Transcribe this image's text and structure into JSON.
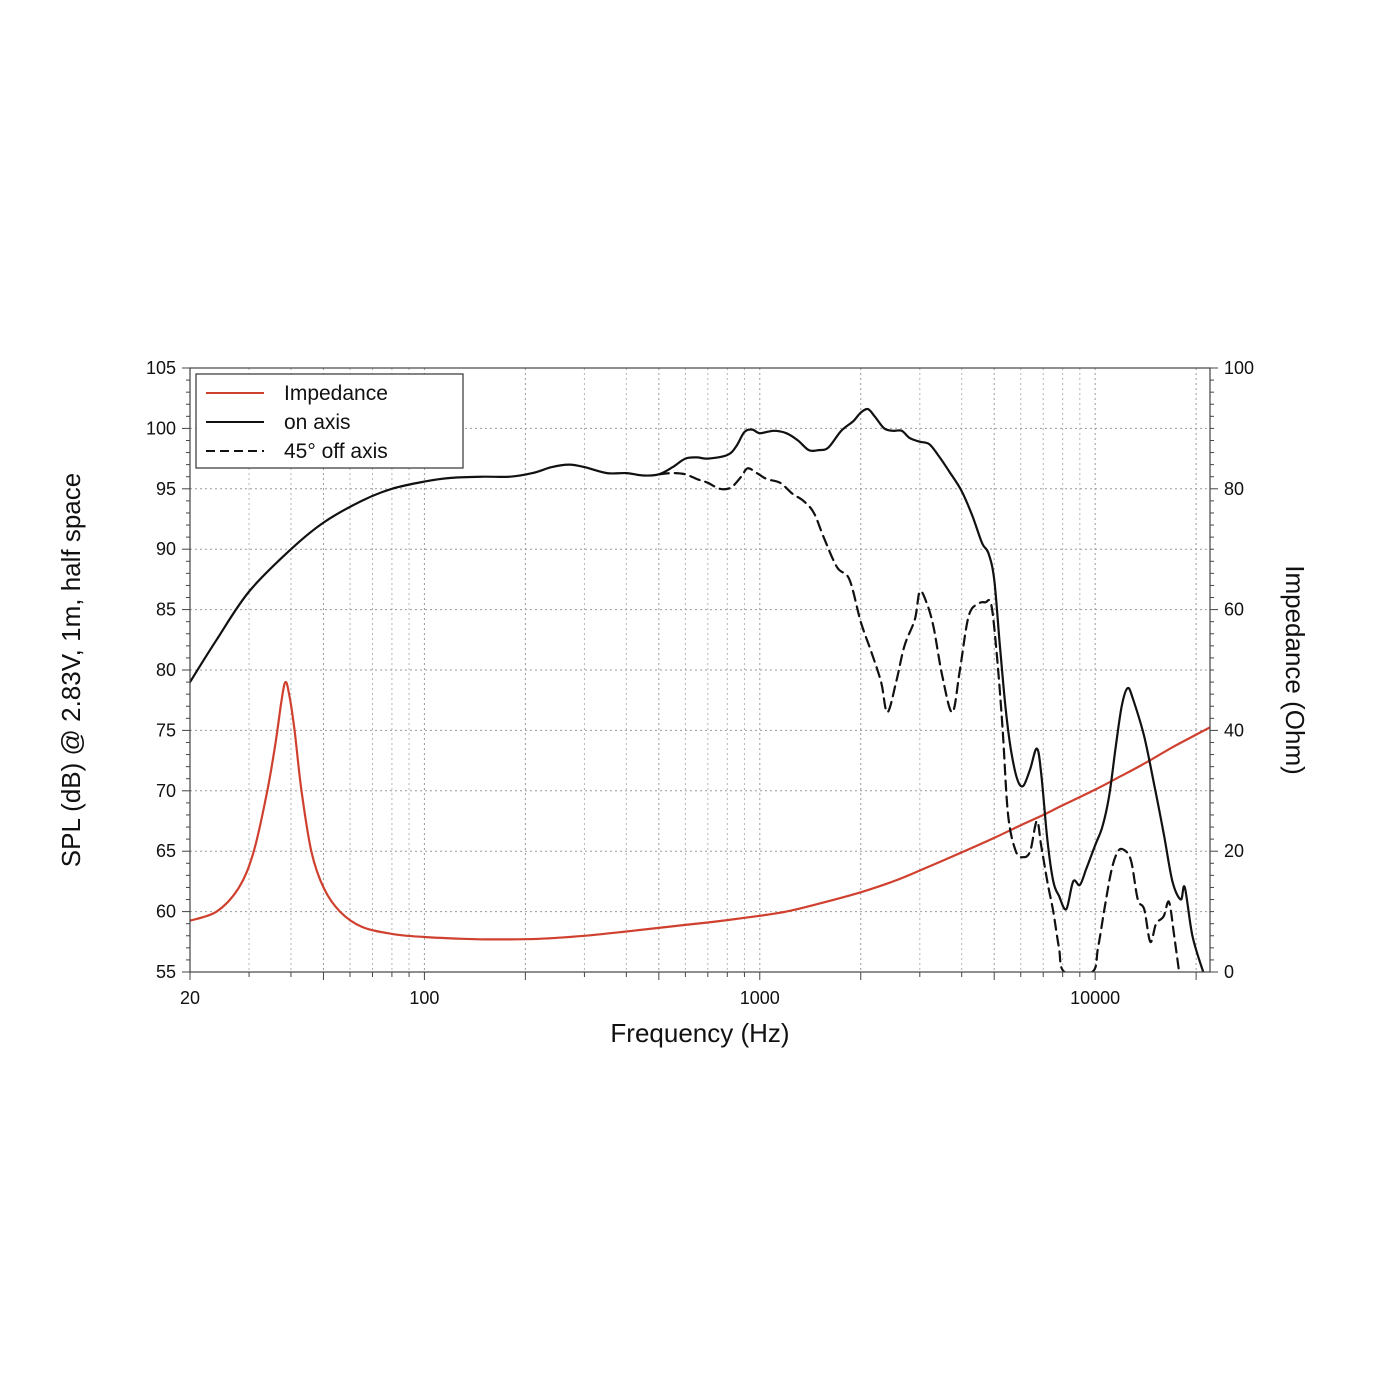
{
  "chart_data": {
    "type": "line",
    "title": "",
    "xlabel": "Frequency (Hz)",
    "ylabel": "SPL (dB) @ 2.83V, 1m, half space",
    "y2label": "Impedance (Ohm)",
    "xscale": "log",
    "xlim": [
      20,
      22000
    ],
    "ylim": [
      55,
      105
    ],
    "y2lim": [
      0,
      100
    ],
    "grid": true,
    "legend_position": "top-left",
    "x_ticks": [
      {
        "value": 20,
        "label": "20"
      },
      {
        "value": 100,
        "label": "100"
      },
      {
        "value": 1000,
        "label": "1000"
      },
      {
        "value": 10000,
        "label": "10000"
      }
    ],
    "y_ticks": [
      {
        "value": 55,
        "label": "55"
      },
      {
        "value": 60,
        "label": "60"
      },
      {
        "value": 65,
        "label": "65"
      },
      {
        "value": 70,
        "label": "70"
      },
      {
        "value": 75,
        "label": "75"
      },
      {
        "value": 80,
        "label": "80"
      },
      {
        "value": 85,
        "label": "85"
      },
      {
        "value": 90,
        "label": "90"
      },
      {
        "value": 95,
        "label": "95"
      },
      {
        "value": 100,
        "label": "100"
      },
      {
        "value": 105,
        "label": "105"
      }
    ],
    "y2_ticks": [
      {
        "value": 0,
        "label": "0"
      },
      {
        "value": 20,
        "label": "20"
      },
      {
        "value": 40,
        "label": "40"
      },
      {
        "value": 60,
        "label": "60"
      },
      {
        "value": 80,
        "label": "80"
      },
      {
        "value": 100,
        "label": "100"
      }
    ],
    "series": [
      {
        "name": "Impedance",
        "axis": "right",
        "color": "#d0402f",
        "dash": "solid",
        "points": [
          [
            20,
            8.5
          ],
          [
            24,
            10
          ],
          [
            28,
            14
          ],
          [
            31,
            20
          ],
          [
            34,
            30
          ],
          [
            36,
            38
          ],
          [
            37.5,
            45
          ],
          [
            38.5,
            48
          ],
          [
            39.5,
            46
          ],
          [
            41,
            40
          ],
          [
            43,
            30
          ],
          [
            46,
            20
          ],
          [
            50,
            14
          ],
          [
            56,
            10
          ],
          [
            65,
            7.5
          ],
          [
            80,
            6.3
          ],
          [
            100,
            5.8
          ],
          [
            130,
            5.5
          ],
          [
            160,
            5.4
          ],
          [
            220,
            5.5
          ],
          [
            300,
            6
          ],
          [
            400,
            6.7
          ],
          [
            500,
            7.3
          ],
          [
            600,
            7.8
          ],
          [
            700,
            8.2
          ],
          [
            800,
            8.6
          ],
          [
            1000,
            9.3
          ],
          [
            1200,
            10
          ],
          [
            1500,
            11.3
          ],
          [
            2000,
            13.2
          ],
          [
            2500,
            15
          ],
          [
            3000,
            16.8
          ],
          [
            4000,
            19.8
          ],
          [
            5000,
            22.2
          ],
          [
            6000,
            24.3
          ],
          [
            7000,
            26
          ],
          [
            8000,
            27.6
          ],
          [
            10000,
            30.2
          ],
          [
            12000,
            32.5
          ],
          [
            14000,
            34.5
          ],
          [
            17000,
            37.2
          ],
          [
            20000,
            39.3
          ],
          [
            22000,
            40.5
          ]
        ]
      },
      {
        "name": "on axis",
        "axis": "left",
        "color": "#111111",
        "dash": "solid",
        "points": [
          [
            20,
            79
          ],
          [
            24,
            82.5
          ],
          [
            30,
            86.5
          ],
          [
            40,
            90
          ],
          [
            50,
            92.2
          ],
          [
            65,
            94
          ],
          [
            80,
            95
          ],
          [
            100,
            95.6
          ],
          [
            120,
            95.9
          ],
          [
            150,
            96
          ],
          [
            180,
            96
          ],
          [
            210,
            96.3
          ],
          [
            240,
            96.8
          ],
          [
            270,
            97
          ],
          [
            300,
            96.8
          ],
          [
            350,
            96.3
          ],
          [
            400,
            96.3
          ],
          [
            450,
            96.1
          ],
          [
            500,
            96.2
          ],
          [
            550,
            96.8
          ],
          [
            600,
            97.5
          ],
          [
            650,
            97.6
          ],
          [
            700,
            97.5
          ],
          [
            800,
            97.8
          ],
          [
            850,
            98.5
          ],
          [
            900,
            99.7
          ],
          [
            950,
            99.9
          ],
          [
            1000,
            99.6
          ],
          [
            1100,
            99.8
          ],
          [
            1200,
            99.6
          ],
          [
            1300,
            99
          ],
          [
            1400,
            98.2
          ],
          [
            1500,
            98.2
          ],
          [
            1600,
            98.4
          ],
          [
            1750,
            99.8
          ],
          [
            1900,
            100.6
          ],
          [
            2000,
            101.3
          ],
          [
            2100,
            101.6
          ],
          [
            2200,
            101
          ],
          [
            2350,
            100
          ],
          [
            2500,
            99.8
          ],
          [
            2650,
            99.8
          ],
          [
            2800,
            99.2
          ],
          [
            3000,
            98.9
          ],
          [
            3200,
            98.7
          ],
          [
            3400,
            97.8
          ],
          [
            3700,
            96.3
          ],
          [
            4000,
            94.8
          ],
          [
            4300,
            92.8
          ],
          [
            4600,
            90.5
          ],
          [
            4800,
            89.7
          ],
          [
            5000,
            87.5
          ],
          [
            5200,
            82
          ],
          [
            5400,
            77
          ],
          [
            5600,
            73.5
          ],
          [
            5850,
            71
          ],
          [
            6100,
            70.4
          ],
          [
            6400,
            71.8
          ],
          [
            6700,
            73.5
          ],
          [
            6900,
            71.5
          ],
          [
            7200,
            66
          ],
          [
            7500,
            62.5
          ],
          [
            7800,
            61.3
          ],
          [
            8200,
            60.2
          ],
          [
            8600,
            62.5
          ],
          [
            9000,
            62.2
          ],
          [
            9400,
            63.5
          ],
          [
            10000,
            65.5
          ],
          [
            10500,
            67
          ],
          [
            11000,
            69.5
          ],
          [
            11500,
            73.5
          ],
          [
            12000,
            77
          ],
          [
            12500,
            78.5
          ],
          [
            13000,
            77.5
          ],
          [
            14000,
            74.5
          ],
          [
            15000,
            70.5
          ],
          [
            16000,
            66.5
          ],
          [
            17000,
            62.5
          ],
          [
            18000,
            61
          ],
          [
            18500,
            62
          ],
          [
            19500,
            58
          ],
          [
            21000,
            55
          ]
        ]
      },
      {
        "name": "45° off axis",
        "axis": "left",
        "color": "#111111",
        "dash": "dashed",
        "points": [
          [
            500,
            96.2
          ],
          [
            550,
            96.3
          ],
          [
            600,
            96.2
          ],
          [
            650,
            95.8
          ],
          [
            700,
            95.5
          ],
          [
            760,
            95
          ],
          [
            820,
            95.1
          ],
          [
            880,
            96
          ],
          [
            920,
            96.7
          ],
          [
            980,
            96.3
          ],
          [
            1050,
            95.8
          ],
          [
            1150,
            95.5
          ],
          [
            1250,
            94.6
          ],
          [
            1350,
            94
          ],
          [
            1450,
            93
          ],
          [
            1550,
            91
          ],
          [
            1700,
            88.5
          ],
          [
            1850,
            87.5
          ],
          [
            2000,
            84
          ],
          [
            2150,
            81.5
          ],
          [
            2300,
            79
          ],
          [
            2400,
            76.5
          ],
          [
            2550,
            79
          ],
          [
            2700,
            82
          ],
          [
            2900,
            84.2
          ],
          [
            3000,
            86.5
          ],
          [
            3150,
            85.5
          ],
          [
            3300,
            83.5
          ],
          [
            3500,
            79.5
          ],
          [
            3750,
            76.5
          ],
          [
            3950,
            80
          ],
          [
            4200,
            84.5
          ],
          [
            4500,
            85.5
          ],
          [
            4700,
            85.6
          ],
          [
            4900,
            85.4
          ],
          [
            5100,
            81
          ],
          [
            5300,
            75
          ],
          [
            5500,
            68
          ],
          [
            5800,
            65
          ],
          [
            6100,
            64.5
          ],
          [
            6400,
            65
          ],
          [
            6700,
            67.5
          ],
          [
            6900,
            65.5
          ],
          [
            7200,
            62.5
          ],
          [
            7500,
            60
          ],
          [
            7800,
            57
          ],
          [
            8100,
            55
          ],
          [
            9800,
            55
          ],
          [
            10200,
            57
          ],
          [
            10700,
            60.5
          ],
          [
            11200,
            63.5
          ],
          [
            11700,
            65
          ],
          [
            12200,
            65.1
          ],
          [
            12800,
            64.2
          ],
          [
            13400,
            61
          ],
          [
            14000,
            60.2
          ],
          [
            14600,
            57.5
          ],
          [
            15200,
            59
          ],
          [
            16000,
            59.6
          ],
          [
            16600,
            60.8
          ],
          [
            17200,
            58
          ],
          [
            17800,
            55
          ]
        ]
      }
    ]
  }
}
